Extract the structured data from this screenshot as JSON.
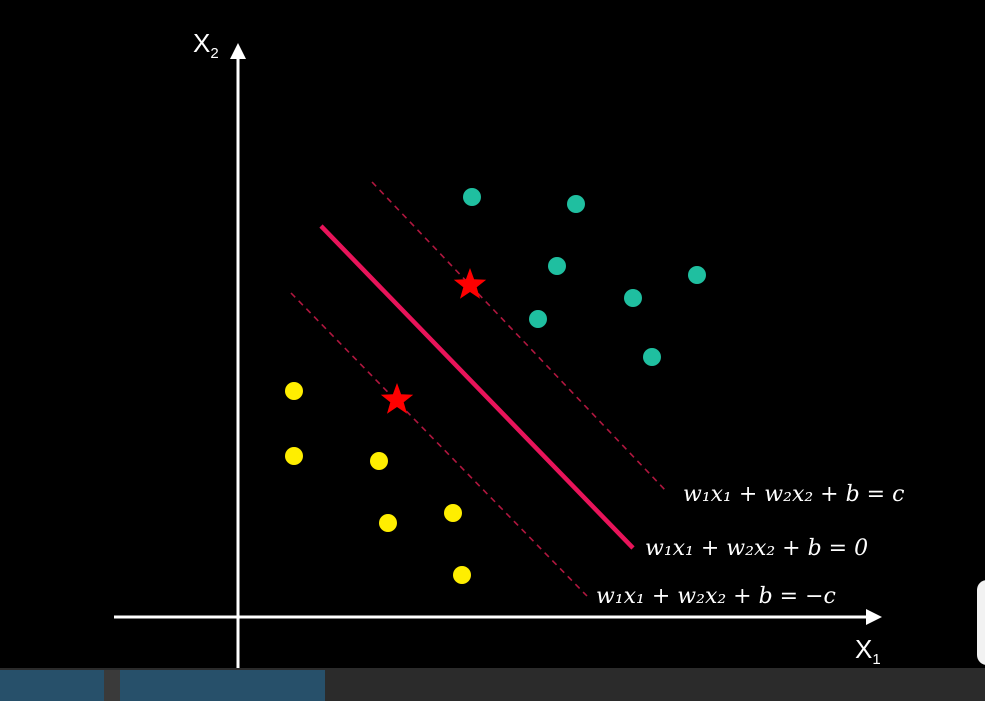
{
  "axes": {
    "x_label": "X",
    "x_sub": "1",
    "y_label": "X",
    "y_sub": "2"
  },
  "equations": {
    "upper": "w₁x₁ + w₂x₂ + b = c",
    "middle": "w₁x₁ + w₂x₂ + b = 0",
    "lower": "w₁x₁ + w₂x₂ + b = −c"
  },
  "colors": {
    "class_a": "#1fbfa0",
    "class_b": "#ffee00",
    "hyperplane": "#e8145a",
    "support_vector": "#ff0000",
    "axis": "#ffffff"
  },
  "chart_data": {
    "type": "scatter",
    "series": [
      {
        "points": [
          [
            472,
            197
          ],
          [
            576,
            204
          ],
          [
            557,
            266
          ],
          [
            697,
            275
          ],
          [
            633,
            298
          ],
          [
            538,
            319
          ],
          [
            652,
            357
          ]
        ]
      },
      {
        "points": [
          [
            294,
            391
          ],
          [
            294,
            456
          ],
          [
            379,
            461
          ],
          [
            388,
            523
          ],
          [
            453,
            513
          ],
          [
            462,
            575
          ]
        ]
      }
    ],
    "support_vectors": [
      [
        470,
        285
      ],
      [
        397,
        400
      ]
    ]
  },
  "player": {
    "progress": 0.33
  }
}
